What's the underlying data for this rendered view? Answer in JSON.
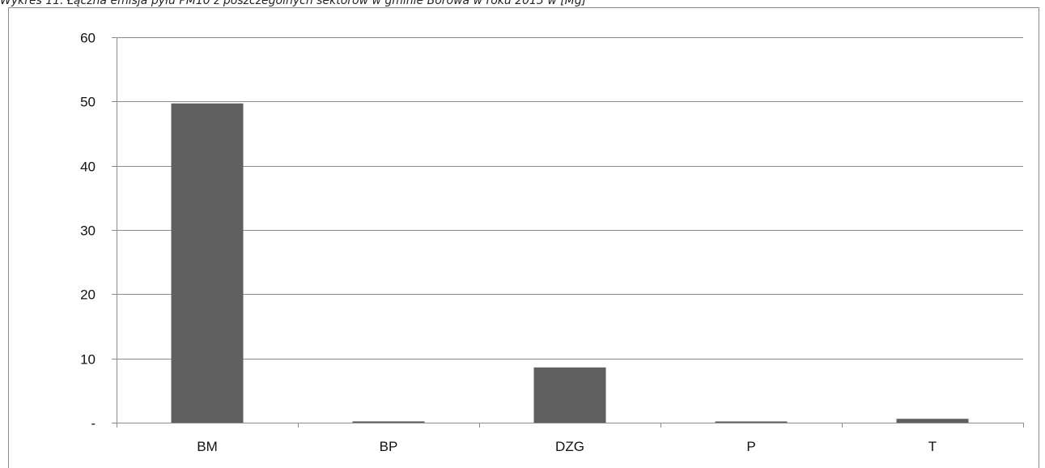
{
  "caption": "Wykres 11. Łączna emisja pyłu PM10 z poszczególnych sektorów w gminie Borowa  w roku 2013 w [Mg]",
  "colors": {
    "bar": "#5f5f5f",
    "grid": "#8c8c8c"
  },
  "chart_data": {
    "type": "bar",
    "title": "",
    "xlabel": "",
    "ylabel": "",
    "categories": [
      "BM",
      "BP",
      "DZG",
      "P",
      "T"
    ],
    "values": [
      49.7,
      0.2,
      8.6,
      0.1,
      0.6
    ],
    "ylim": [
      0,
      60
    ],
    "yticks": [
      0,
      10,
      20,
      30,
      40,
      50,
      60
    ],
    "ytick_labels": [
      "-",
      "10",
      "20",
      "30",
      "40",
      "50",
      "60"
    ],
    "grid": true,
    "legend": "none"
  }
}
